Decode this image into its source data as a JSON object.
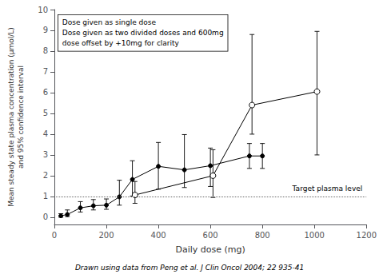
{
  "chart_data": {
    "type": "line",
    "title": "",
    "xlabel": "Daily dose (mg)",
    "ylabel": "Mean steady state plasma concentration (μmol/L)\nand 95% confidence interval",
    "xlim": [
      0,
      1200
    ],
    "ylim": [
      -0.35,
      10
    ],
    "xticks": [
      0,
      200,
      400,
      600,
      800,
      1000,
      1200
    ],
    "yticks": [
      0,
      1,
      2,
      3,
      4,
      5,
      6,
      7,
      8,
      9,
      10
    ],
    "grid": false,
    "series": [
      {
        "x": [
          25,
          50,
          100,
          150,
          200,
          250,
          300,
          400,
          500,
          600,
          750,
          800
        ],
        "values": [
          0.07,
          0.13,
          0.45,
          0.55,
          0.58,
          0.98,
          1.82,
          2.45,
          2.28,
          2.48,
          2.95,
          2.95
        ],
        "yerr_low": [
          0.07,
          0.1,
          0.2,
          0.2,
          0.2,
          0.4,
          0.8,
          1.1,
          0.85,
          1.0,
          0.6,
          0.6
        ],
        "yerr_high": [
          0.1,
          0.22,
          0.3,
          0.3,
          0.3,
          0.8,
          0.9,
          1.15,
          1.7,
          0.85,
          0.6,
          0.6
        ],
        "color": "#000000",
        "marker": "filled_circle"
      },
      {
        "x": [
          310,
          610,
          760,
          1010
        ],
        "values": [
          1.07,
          2.0,
          5.4,
          6.05
        ],
        "yerr_low": [
          0.4,
          1.05,
          1.4,
          3.05
        ],
        "yerr_high": [
          0.65,
          1.25,
          3.4,
          2.9
        ],
        "color": "#000000",
        "marker": "open_circle"
      }
    ],
    "reference_line": {
      "y": 1.0,
      "label": "Target plasma level",
      "line_style": "dotted"
    },
    "annotations": [
      "Dose given as single dose\nDose given as two divided doses and 600mg\ndose offset by +10mg for clarity",
      "Drawn using data from Peng et al. J Clin Oncol 2004; 22 935-41"
    ]
  }
}
